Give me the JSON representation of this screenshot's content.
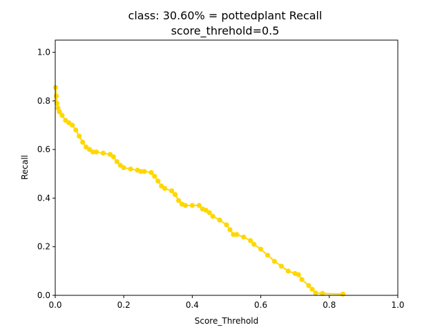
{
  "chart_data": {
    "type": "line",
    "title_line1": "class: 30.60% = pottedplant Recall",
    "title_line2": "score_threhold=0.5",
    "xlabel": "Score_Threhold",
    "ylabel": "Recall",
    "xlim": [
      0,
      1
    ],
    "ylim": [
      0,
      1.05
    ],
    "xticks": [
      "0.0",
      "0.2",
      "0.4",
      "0.6",
      "0.8",
      "1.0"
    ],
    "yticks": [
      "0.0",
      "0.2",
      "0.4",
      "0.6",
      "0.8",
      "1.0"
    ],
    "grid": false,
    "series": [
      {
        "color": "#ffd700",
        "x": [
          0.001,
          0.003,
          0.005,
          0.008,
          0.012,
          0.02,
          0.03,
          0.04,
          0.05,
          0.06,
          0.07,
          0.08,
          0.09,
          0.1,
          0.11,
          0.12,
          0.14,
          0.16,
          0.17,
          0.18,
          0.19,
          0.2,
          0.22,
          0.24,
          0.25,
          0.26,
          0.28,
          0.29,
          0.3,
          0.31,
          0.32,
          0.34,
          0.35,
          0.36,
          0.37,
          0.38,
          0.4,
          0.42,
          0.43,
          0.44,
          0.45,
          0.46,
          0.48,
          0.5,
          0.51,
          0.52,
          0.53,
          0.55,
          0.57,
          0.58,
          0.6,
          0.62,
          0.64,
          0.66,
          0.68,
          0.7,
          0.71,
          0.72,
          0.74,
          0.75,
          0.76,
          0.78,
          0.84
        ],
        "y": [
          0.855,
          0.82,
          0.79,
          0.77,
          0.755,
          0.74,
          0.72,
          0.71,
          0.7,
          0.68,
          0.655,
          0.63,
          0.61,
          0.6,
          0.59,
          0.59,
          0.585,
          0.58,
          0.57,
          0.55,
          0.535,
          0.525,
          0.52,
          0.515,
          0.51,
          0.51,
          0.505,
          0.49,
          0.47,
          0.45,
          0.44,
          0.43,
          0.415,
          0.39,
          0.375,
          0.37,
          0.37,
          0.37,
          0.355,
          0.35,
          0.34,
          0.325,
          0.31,
          0.29,
          0.27,
          0.25,
          0.25,
          0.24,
          0.225,
          0.21,
          0.19,
          0.165,
          0.14,
          0.12,
          0.1,
          0.09,
          0.085,
          0.065,
          0.04,
          0.025,
          0.01,
          0.008,
          0.005
        ]
      }
    ]
  }
}
